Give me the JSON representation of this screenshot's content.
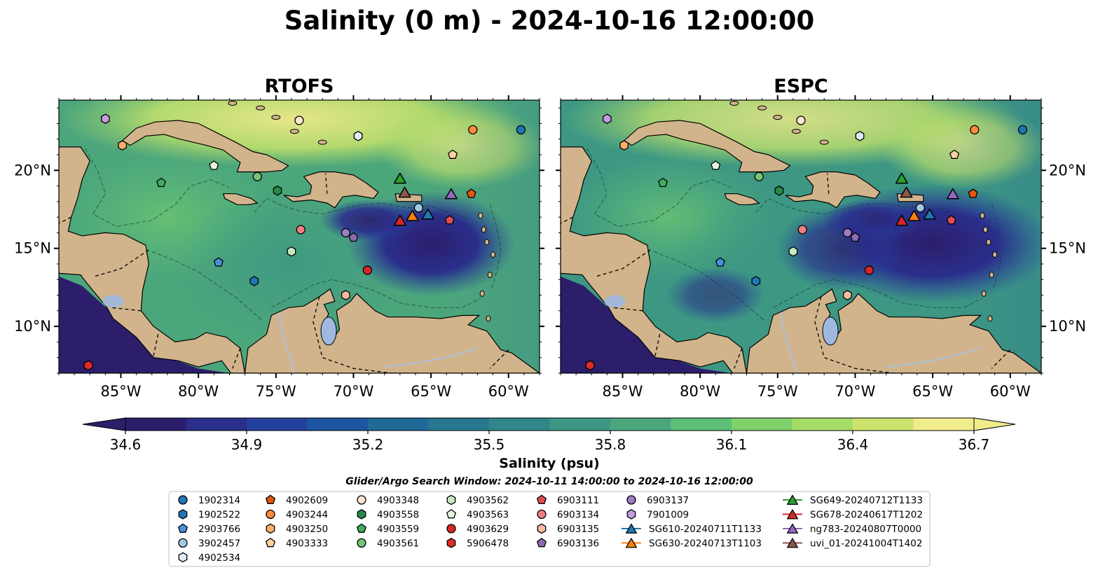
{
  "figure": {
    "title": "Salinity (0 m) - 2024-10-16 12:00:00",
    "search_window": "Glider/Argo Search Window: 2024-10-11 14:00:00 to 2024-10-16 12:00:00"
  },
  "panels": [
    {
      "title": "RTOFS"
    },
    {
      "title": "ESPC"
    }
  ],
  "map": {
    "lon_range": [
      -89.0,
      -58.0
    ],
    "lat_range": [
      7.0,
      24.5
    ],
    "lon_ticks": [
      {
        "value": -85,
        "label": "85°W"
      },
      {
        "value": -80,
        "label": "80°W"
      },
      {
        "value": -75,
        "label": "75°W"
      },
      {
        "value": -70,
        "label": "70°W"
      },
      {
        "value": -65,
        "label": "65°W"
      },
      {
        "value": -60,
        "label": "60°W"
      }
    ],
    "lat_ticks": [
      {
        "value": 10,
        "label": "10°N"
      },
      {
        "value": 15,
        "label": "15°N"
      },
      {
        "value": 20,
        "label": "20°N"
      }
    ],
    "colors": {
      "land": "#d2b48c",
      "lake": "#9fb8e0",
      "river": "#a9c0dc",
      "ocean_low": "#2b1a6e",
      "ocean_mid": "#3d8f86",
      "ocean_high": "#f0e88a"
    }
  },
  "colorbar": {
    "label": "Salinity (psu)",
    "vmin": 34.6,
    "vmax": 36.7,
    "ticks": [
      "34.6",
      "34.9",
      "35.2",
      "35.5",
      "35.8",
      "36.1",
      "36.4",
      "36.7"
    ],
    "colors": [
      "#2c1e6b",
      "#2a2f8c",
      "#24409e",
      "#1d55a0",
      "#1f6a98",
      "#27778f",
      "#318689",
      "#3d9783",
      "#4ca67c",
      "#5ebf78",
      "#80d06c",
      "#a6dc68",
      "#cce46d",
      "#f1ec8c"
    ]
  },
  "legend": {
    "columns": [
      [
        {
          "label": "1902314",
          "shape": "circle",
          "color": "#1f77b4"
        },
        {
          "label": "1902522",
          "shape": "hexagon",
          "color": "#1f77b4"
        },
        {
          "label": "2903766",
          "shape": "pentagon",
          "color": "#4a90d9"
        },
        {
          "label": "3902457",
          "shape": "circle",
          "color": "#9ecae1"
        },
        {
          "label": "4902534",
          "shape": "hexagon",
          "color": "#deebf7"
        }
      ],
      [
        {
          "label": "4902609",
          "shape": "pentagon",
          "color": "#e6550d"
        },
        {
          "label": "4903244",
          "shape": "circle",
          "color": "#fd8d3c"
        },
        {
          "label": "4903250",
          "shape": "hexagon",
          "color": "#fdae6b"
        },
        {
          "label": "4903333",
          "shape": "pentagon",
          "color": "#fdd0a2"
        }
      ],
      [
        {
          "label": "4903348",
          "shape": "circle",
          "color": "#fee6ce"
        },
        {
          "label": "4903558",
          "shape": "hexagon",
          "color": "#238b45"
        },
        {
          "label": "4903559",
          "shape": "pentagon",
          "color": "#41ab5d"
        },
        {
          "label": "4903561",
          "shape": "circle",
          "color": "#74c476"
        }
      ],
      [
        {
          "label": "4903562",
          "shape": "hexagon",
          "color": "#c7e9c0"
        },
        {
          "label": "4903563",
          "shape": "pentagon",
          "color": "#e5f5e0"
        },
        {
          "label": "4903629",
          "shape": "circle",
          "color": "#d62728"
        },
        {
          "label": "5906478",
          "shape": "hexagon",
          "color": "#de2d26"
        }
      ],
      [
        {
          "label": "6903111",
          "shape": "pentagon",
          "color": "#e34a52"
        },
        {
          "label": "6903134",
          "shape": "circle",
          "color": "#f08080"
        },
        {
          "label": "6903135",
          "shape": "hexagon",
          "color": "#fcbba1"
        },
        {
          "label": "6903136",
          "shape": "pentagon",
          "color": "#8c6bb1"
        }
      ],
      [
        {
          "label": "6903137",
          "shape": "circle",
          "color": "#9e7cc8"
        },
        {
          "label": "7901009",
          "shape": "hexagon",
          "color": "#c39be0"
        },
        {
          "label": "SG610-20240711T1133",
          "shape": "triangle",
          "color": "#1f77b4",
          "line": true
        },
        {
          "label": "SG630-20240713T1103",
          "shape": "triangle",
          "color": "#ff7f0e",
          "line": true
        }
      ],
      [
        {
          "label": "SG649-20240712T1133",
          "shape": "triangle",
          "color": "#2ca02c",
          "line": true
        },
        {
          "label": "SG678-20240617T1202",
          "shape": "triangle",
          "color": "#d62728",
          "line": true
        },
        {
          "label": "ng783-20240807T0000",
          "shape": "triangle",
          "color": "#9467bd",
          "line": true
        },
        {
          "label": "uvi_01-20241004T1402",
          "shape": "triangle",
          "color": "#8c564b",
          "line": true
        }
      ]
    ]
  },
  "markers": [
    {
      "id": "1902314",
      "lon": -59.2,
      "lat": 22.6
    },
    {
      "id": "1902522",
      "lon": -76.4,
      "lat": 12.9
    },
    {
      "id": "2903766",
      "lon": -78.7,
      "lat": 14.1
    },
    {
      "id": "3902457",
      "lon": -65.8,
      "lat": 17.6
    },
    {
      "id": "4902534",
      "lon": -69.7,
      "lat": 22.2
    },
    {
      "id": "4902609",
      "lon": -62.4,
      "lat": 18.5
    },
    {
      "id": "4903244",
      "lon": -62.3,
      "lat": 22.6
    },
    {
      "id": "4903250",
      "lon": -84.9,
      "lat": 21.6
    },
    {
      "id": "4903333",
      "lon": -63.6,
      "lat": 21.0
    },
    {
      "id": "4903348",
      "lon": -73.5,
      "lat": 23.2
    },
    {
      "id": "4903558",
      "lon": -74.9,
      "lat": 18.7
    },
    {
      "id": "4903559",
      "lon": -82.4,
      "lat": 19.2
    },
    {
      "id": "4903561",
      "lon": -76.2,
      "lat": 19.6
    },
    {
      "id": "4903562",
      "lon": -74.0,
      "lat": 14.8
    },
    {
      "id": "4903563",
      "lon": -79.0,
      "lat": 20.3
    },
    {
      "id": "4903629",
      "lon": -69.1,
      "lat": 13.6
    },
    {
      "id": "5906478",
      "lon": -87.1,
      "lat": 7.5
    },
    {
      "id": "6903111",
      "lon": -63.8,
      "lat": 16.8
    },
    {
      "id": "6903134",
      "lon": -73.4,
      "lat": 16.2
    },
    {
      "id": "6903135",
      "lon": -70.5,
      "lat": 12.0
    },
    {
      "id": "6903136",
      "lon": -70.0,
      "lat": 15.7
    },
    {
      "id": "6903137",
      "lon": -70.5,
      "lat": 16.0
    },
    {
      "id": "7901009",
      "lon": -86.0,
      "lat": 23.3
    },
    {
      "id": "SG610-20240711T1133",
      "lon": -65.2,
      "lat": 17.2
    },
    {
      "id": "SG630-20240713T1103",
      "lon": -66.2,
      "lat": 17.1
    },
    {
      "id": "SG649-20240712T1133",
      "lon": -67.0,
      "lat": 19.5
    },
    {
      "id": "SG678-20240617T1202",
      "lon": -67.0,
      "lat": 16.8
    },
    {
      "id": "ng783-20240807T0000",
      "lon": -63.7,
      "lat": 18.5
    },
    {
      "id": "uvi_01-20241004T1402",
      "lon": -66.7,
      "lat": 18.6
    }
  ]
}
